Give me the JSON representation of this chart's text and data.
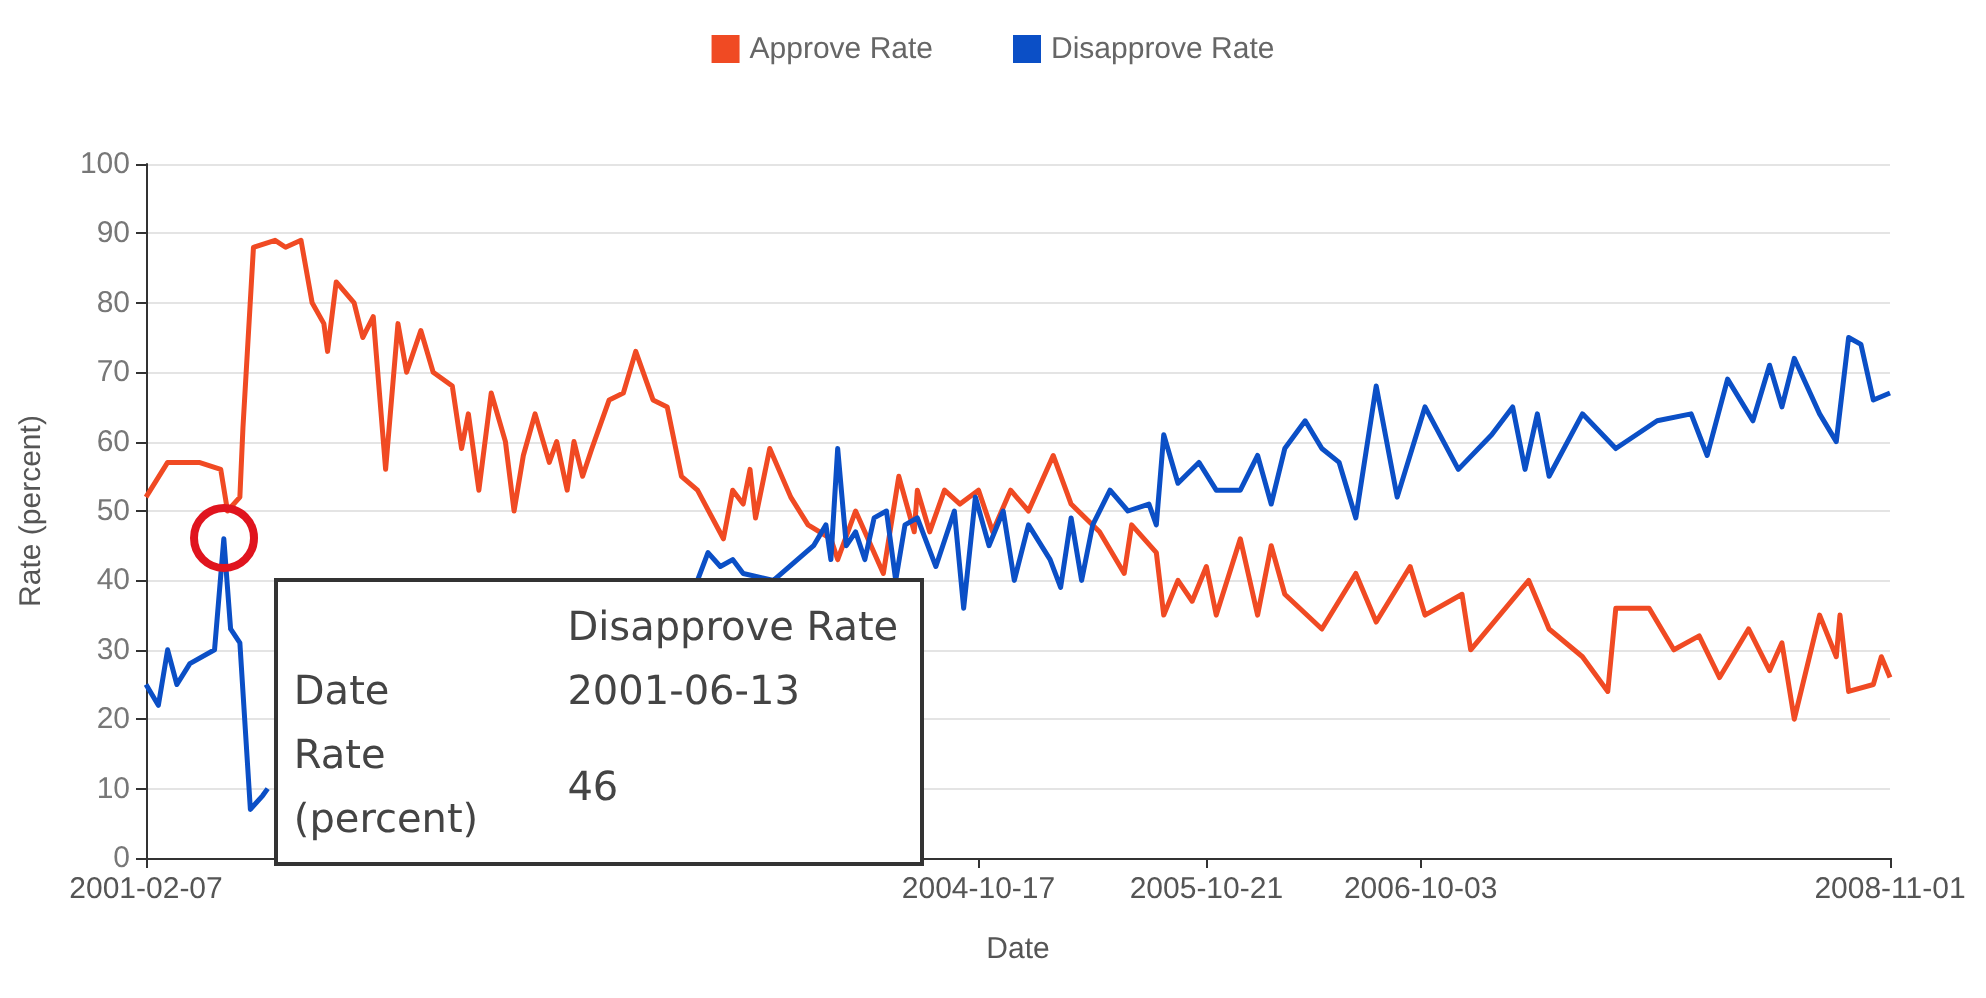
{
  "chart_data": {
    "type": "line",
    "xlabel": "Date",
    "ylabel": "Rate (percent)",
    "xlim": [
      "2001-02-07",
      "2008-11-01"
    ],
    "xticks": [
      "2001-02-07",
      "2004-10-17",
      "2005-10-21",
      "2006-10-03",
      "2008-11-01"
    ],
    "ylim": [
      0,
      100
    ],
    "yticks": [
      0,
      10,
      20,
      30,
      40,
      50,
      60,
      70,
      80,
      90,
      100
    ],
    "grid": "y",
    "legend": "top",
    "annotations": [
      "Disapprove Rate",
      "2001-06-13",
      "46"
    ],
    "series": [
      {
        "name": "Approve Rate",
        "color": "#f04a23",
        "x": [
          "2001-02-07",
          "2001-03-14",
          "2001-05-04",
          "2001-06-08",
          "2001-06-19",
          "2001-07-09",
          "2001-07-14",
          "2001-07-31",
          "2001-09-04",
          "2001-09-21",
          "2001-10-16",
          "2001-11-03",
          "2001-11-22",
          "2001-11-28",
          "2001-12-12",
          "2002-01-10",
          "2002-01-24",
          "2002-02-10",
          "2002-03-02",
          "2002-03-22",
          "2002-04-05",
          "2002-04-28",
          "2002-05-18",
          "2002-06-18",
          "2002-07-03",
          "2002-07-14",
          "2002-07-31",
          "2002-08-20",
          "2002-09-12",
          "2002-09-26",
          "2002-10-11",
          "2002-10-30",
          "2002-11-22",
          "2002-12-04",
          "2002-12-21",
          "2003-01-01",
          "2003-01-15",
          "2003-01-30",
          "2003-02-27",
          "2003-03-22",
          "2003-04-11",
          "2003-05-09",
          "2003-06-01",
          "2003-06-24",
          "2003-07-20",
          "2003-08-31",
          "2003-09-15",
          "2003-10-02",
          "2003-10-13",
          "2003-10-22",
          "2003-11-14",
          "2003-12-18",
          "2004-01-15",
          "2004-02-21",
          "2004-03-03",
          "2004-04-01",
          "2004-05-16",
          "2004-06-10",
          "2004-07-05",
          "2004-07-10",
          "2004-07-30",
          "2004-08-23",
          "2004-09-17",
          "2004-10-17",
          "2004-11-09",
          "2004-12-08",
          "2005-01-06",
          "2005-02-15",
          "2005-03-16",
          "2005-05-01",
          "2005-06-10",
          "2005-06-22",
          "2005-08-01",
          "2005-08-13",
          "2005-09-05",
          "2005-09-28",
          "2005-10-21",
          "2005-11-06",
          "2005-12-15",
          "2006-01-12",
          "2006-02-03",
          "2006-02-25",
          "2006-04-26",
          "2006-06-20",
          "2006-07-23",
          "2006-09-16",
          "2006-10-10",
          "2006-12-09",
          "2006-12-23",
          "2007-03-27",
          "2007-04-29",
          "2007-06-22",
          "2007-08-02",
          "2007-08-15",
          "2007-10-08",
          "2007-11-17",
          "2007-12-28",
          "2008-01-30",
          "2008-03-17",
          "2008-04-20",
          "2008-05-10",
          "2008-05-30",
          "2008-07-10",
          "2008-08-06",
          "2008-08-12",
          "2008-08-26",
          "2008-10-05",
          "2008-10-18",
          "2008-11-01"
        ],
        "values": [
          52,
          57,
          57,
          56,
          50,
          52,
          62,
          88,
          89,
          88,
          89,
          80,
          77,
          73,
          83,
          80,
          75,
          78,
          56,
          77,
          70,
          76,
          70,
          68,
          59,
          64,
          53,
          67,
          60,
          50,
          58,
          64,
          57,
          60,
          53,
          60,
          55,
          59,
          66,
          67,
          73,
          66,
          65,
          55,
          53,
          46,
          53,
          51,
          56,
          49,
          59,
          52,
          48,
          46,
          43,
          50,
          41,
          55,
          47,
          53,
          47,
          53,
          51,
          53,
          47,
          53,
          50,
          58,
          51,
          47,
          41,
          48,
          44,
          35,
          40,
          37,
          42,
          35,
          46,
          35,
          45,
          38,
          33,
          41,
          34,
          42,
          35,
          38,
          30,
          40,
          33,
          29,
          24,
          36,
          36,
          30,
          32,
          26,
          33,
          27,
          31,
          20,
          35,
          29,
          35,
          24,
          25,
          29,
          26
        ]
      },
      {
        "name": "Disapprove Rate",
        "color": "#0b4fc6",
        "x": [
          "2001-02-07",
          "2001-02-27",
          "2001-03-14",
          "2001-03-29",
          "2001-04-19",
          "2001-05-29",
          "2001-06-13",
          "2001-06-24",
          "2001-07-09",
          "2001-07-26",
          "2001-08-15",
          "2001-08-23",
          "2002-06-01",
          "2003-07-20",
          "2003-08-06",
          "2003-08-26",
          "2003-09-15",
          "2003-10-02",
          "2003-11-20",
          "2004-01-24",
          "2004-02-13",
          "2004-02-21",
          "2004-03-03",
          "2004-03-17",
          "2004-04-01",
          "2004-04-16",
          "2004-05-01",
          "2004-05-21",
          "2004-06-05",
          "2004-06-20",
          "2004-07-10",
          "2004-08-09",
          "2004-09-08",
          "2004-09-23",
          "2004-10-12",
          "2004-11-03",
          "2004-11-26",
          "2004-12-14",
          "2005-01-06",
          "2005-02-10",
          "2005-02-27",
          "2005-03-16",
          "2005-04-02",
          "2005-04-20",
          "2005-05-18",
          "2005-06-16",
          "2005-07-20",
          "2005-08-01",
          "2005-08-13",
          "2005-09-05",
          "2005-10-09",
          "2005-11-06",
          "2005-12-15",
          "2006-01-12",
          "2006-02-03",
          "2006-02-25",
          "2006-03-30",
          "2006-04-26",
          "2006-05-24",
          "2006-06-20",
          "2006-07-23",
          "2006-08-26",
          "2006-10-10",
          "2006-12-03",
          "2007-01-26",
          "2007-03-01",
          "2007-03-21",
          "2007-04-10",
          "2007-04-29",
          "2007-06-22",
          "2007-08-15",
          "2007-10-21",
          "2007-12-15",
          "2008-01-10",
          "2008-02-12",
          "2008-03-24",
          "2008-04-20",
          "2008-05-10",
          "2008-05-30",
          "2008-07-10",
          "2008-08-06",
          "2008-08-26",
          "2008-09-15",
          "2008-10-05",
          "2008-11-01"
        ],
        "values": [
          25,
          22,
          30,
          25,
          28,
          30,
          46,
          33,
          31,
          7,
          9,
          10,
          null,
          40,
          44,
          42,
          43,
          41,
          40,
          45,
          48,
          43,
          59,
          45,
          47,
          43,
          49,
          50,
          40,
          48,
          49,
          42,
          50,
          36,
          52,
          45,
          50,
          40,
          48,
          43,
          39,
          49,
          40,
          48,
          53,
          50,
          51,
          48,
          61,
          54,
          57,
          53,
          53,
          58,
          51,
          59,
          63,
          59,
          57,
          49,
          68,
          52,
          65,
          56,
          61,
          65,
          56,
          64,
          55,
          64,
          59,
          63,
          64,
          58,
          69,
          63,
          71,
          65,
          72,
          64,
          60,
          75,
          74,
          66,
          67
        ]
      }
    ]
  }
}
